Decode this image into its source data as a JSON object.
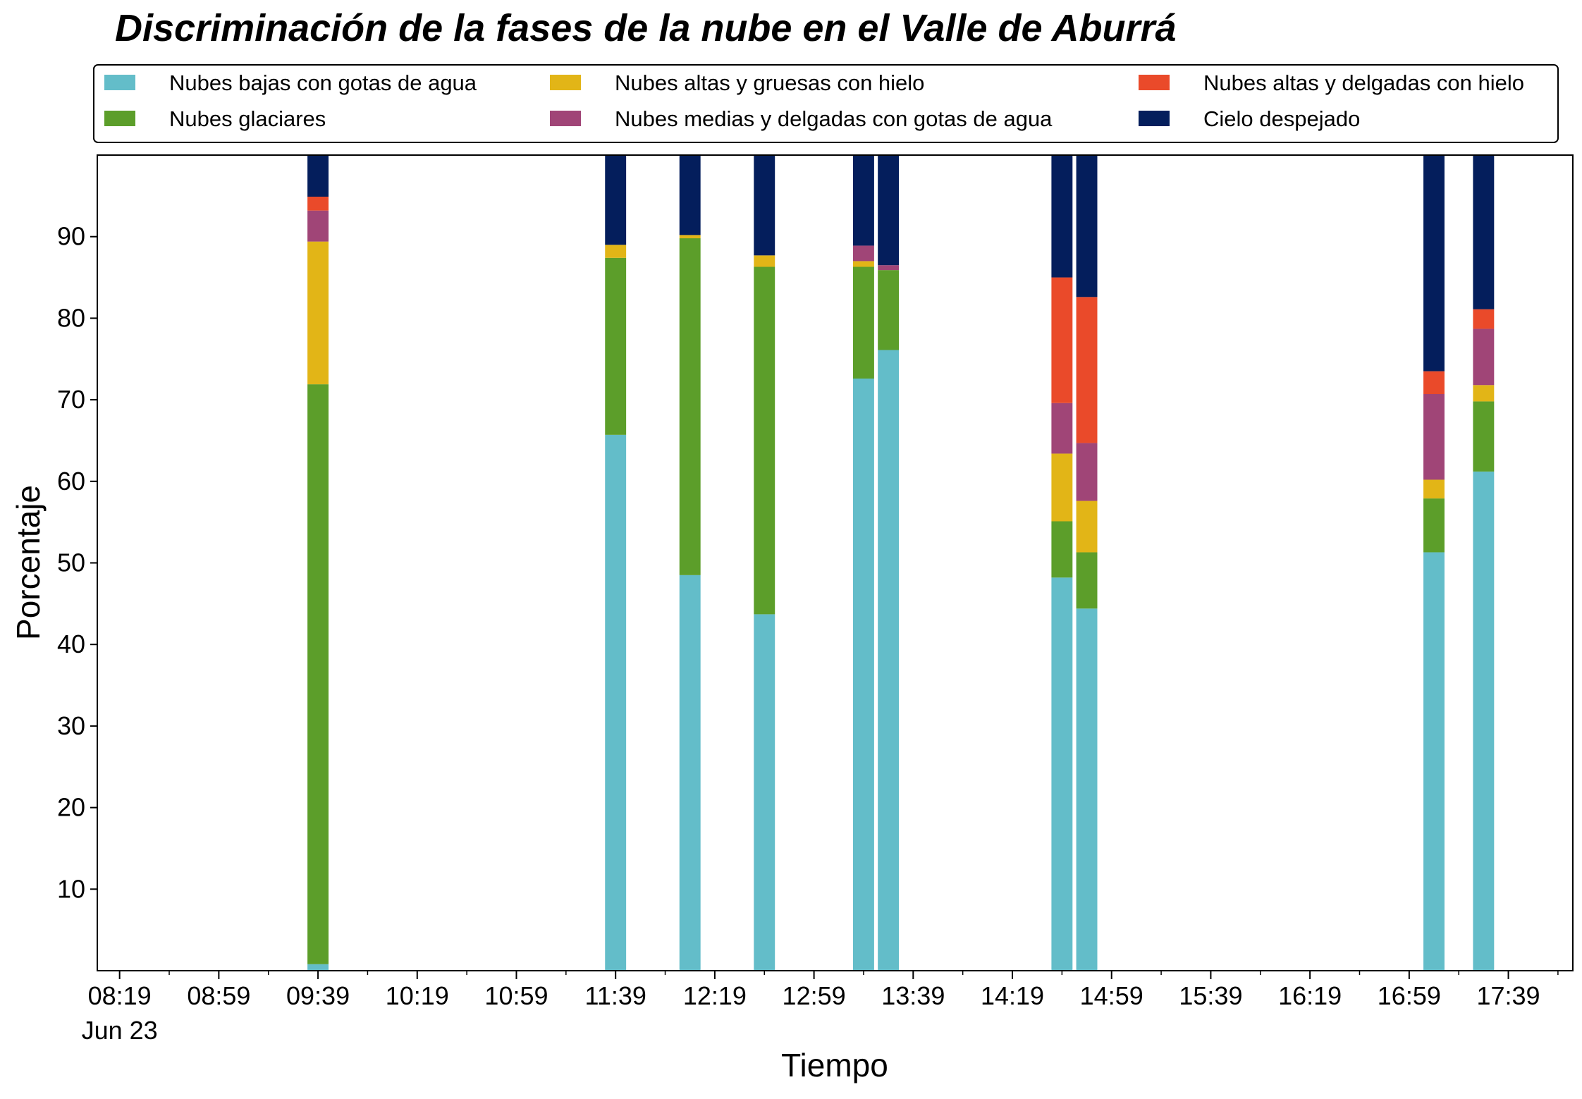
{
  "chart_data": {
    "type": "bar",
    "stacked": true,
    "title": "Discriminación de la fases de la nube en el Valle de Aburrá",
    "xlabel": "Tiempo",
    "ylabel": "Porcentaje",
    "ylim": [
      0,
      100
    ],
    "yticks": [
      10,
      20,
      30,
      40,
      50,
      60,
      70,
      80,
      90
    ],
    "xlim_minutes": [
      490,
      1085
    ],
    "xticks": [
      {
        "min": 499,
        "label": "08:19",
        "sublabel": "Jun 23"
      },
      {
        "min": 539,
        "label": "08:59"
      },
      {
        "min": 579,
        "label": "09:39"
      },
      {
        "min": 619,
        "label": "10:19"
      },
      {
        "min": 659,
        "label": "10:59"
      },
      {
        "min": 699,
        "label": "11:39"
      },
      {
        "min": 739,
        "label": "12:19"
      },
      {
        "min": 779,
        "label": "12:59"
      },
      {
        "min": 819,
        "label": "13:39"
      },
      {
        "min": 859,
        "label": "14:19"
      },
      {
        "min": 899,
        "label": "14:59"
      },
      {
        "min": 939,
        "label": "15:39"
      },
      {
        "min": 979,
        "label": "16:19"
      },
      {
        "min": 1019,
        "label": "16:59"
      },
      {
        "min": 1059,
        "label": "17:39"
      }
    ],
    "grid": false,
    "legend_position": "top",
    "x": [
      "09:39",
      "11:39",
      "12:09",
      "12:39",
      "13:19",
      "13:29",
      "14:39",
      "14:49",
      "17:09",
      "17:29"
    ],
    "series": [
      {
        "name": "Nubes bajas con gotas de agua",
        "color": "#63BDC9",
        "values": [
          0.8,
          65.7,
          48.5,
          43.7,
          72.6,
          76.1,
          48.2,
          44.4,
          51.3,
          61.2
        ]
      },
      {
        "name": "Nubes glaciares",
        "color": "#5C9E2A",
        "values": [
          71.1,
          21.7,
          41.3,
          42.6,
          13.7,
          9.8,
          6.9,
          6.9,
          6.6,
          8.6
        ]
      },
      {
        "name": "Nubes altas y gruesas con hielo",
        "color": "#E2B517",
        "values": [
          17.5,
          1.6,
          0.4,
          1.4,
          0.7,
          0.0,
          8.3,
          6.3,
          2.3,
          2.0
        ]
      },
      {
        "name": "Nubes medias y delgadas con gotas de agua",
        "color": "#A04577",
        "values": [
          3.8,
          0.0,
          0.0,
          0.0,
          1.9,
          0.6,
          6.2,
          7.1,
          10.5,
          6.9
        ]
      },
      {
        "name": "Nubes altas y delgadas con hielo",
        "color": "#EA4A2A",
        "values": [
          1.7,
          0.0,
          0.0,
          0.0,
          0.0,
          0.0,
          15.4,
          17.9,
          2.8,
          2.4
        ]
      },
      {
        "name": "Cielo despejado",
        "color": "#041E5C",
        "values": [
          5.1,
          11.0,
          9.8,
          12.3,
          11.1,
          13.5,
          15.0,
          17.4,
          26.5,
          18.9
        ]
      }
    ]
  }
}
